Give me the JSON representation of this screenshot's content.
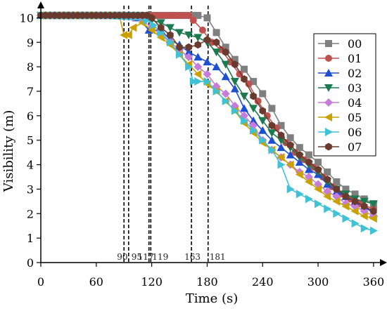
{
  "chart_data": {
    "type": "line",
    "title": "",
    "xlabel": "Time (s)",
    "ylabel": "Visibility (m)",
    "xlim": [
      0,
      370
    ],
    "ylim": [
      0,
      10.5
    ],
    "xticks": [
      0,
      60,
      120,
      180,
      240,
      300,
      360
    ],
    "yticks": [
      0,
      1,
      2,
      3,
      4,
      5,
      6,
      7,
      8,
      9,
      10
    ],
    "grid": false,
    "legend_position": "top-right",
    "vertical_lines": [
      {
        "x": 90,
        "label": "90"
      },
      {
        "x": 95,
        "label": "95"
      },
      {
        "x": 117,
        "label": "117"
      },
      {
        "x": 119,
        "label": "119"
      },
      {
        "x": 163,
        "label": "163"
      },
      {
        "x": 181,
        "label": "181"
      }
    ],
    "series": [
      {
        "name": "00",
        "color": "#7f7f7f",
        "marker": "square",
        "x": [
          0,
          170,
          180,
          190,
          200,
          210,
          220,
          230,
          240,
          250,
          260,
          270,
          280,
          290,
          300,
          310,
          320,
          330,
          340,
          350,
          360
        ],
        "y": [
          10.1,
          10.1,
          10.0,
          9.4,
          8.8,
          8.3,
          7.9,
          7.4,
          6.9,
          6.3,
          5.6,
          5.1,
          4.7,
          4.4,
          4.1,
          3.7,
          3.3,
          3.0,
          2.8,
          2.6,
          2.4
        ]
      },
      {
        "name": "01",
        "color": "#c0504d",
        "marker": "circle",
        "x": [
          0,
          160,
          165,
          175,
          185,
          195,
          205,
          215,
          225,
          235,
          245,
          255,
          265,
          275,
          285,
          295,
          305,
          315,
          325,
          335,
          345,
          360
        ],
        "y": [
          10.1,
          10.1,
          9.9,
          9.5,
          9.0,
          8.7,
          8.2,
          7.7,
          7.3,
          6.6,
          6.0,
          5.5,
          4.9,
          4.5,
          4.2,
          3.9,
          3.5,
          3.1,
          2.8,
          2.6,
          2.4,
          2.2
        ]
      },
      {
        "name": "02",
        "color": "#1f4fd1",
        "marker": "triangle-up",
        "x": [
          0,
          105,
          117,
          130,
          140,
          150,
          160,
          170,
          180,
          190,
          200,
          210,
          220,
          230,
          240,
          250,
          260,
          270,
          280,
          290,
          300,
          310,
          320,
          330,
          340,
          350,
          360
        ],
        "y": [
          10.1,
          10.0,
          9.5,
          9.5,
          9.1,
          8.9,
          8.6,
          8.4,
          8.2,
          8.0,
          7.6,
          7.1,
          6.3,
          5.8,
          5.4,
          5.0,
          4.7,
          4.4,
          4.1,
          3.8,
          3.6,
          3.2,
          2.9,
          2.7,
          2.5,
          2.3,
          2.0
        ]
      },
      {
        "name": "03",
        "color": "#1b7a4f",
        "marker": "triangle-down",
        "x": [
          0,
          110,
          120,
          130,
          140,
          150,
          160,
          170,
          180,
          190,
          200,
          210,
          220,
          230,
          240,
          250,
          260,
          270,
          280,
          290,
          300,
          310,
          320,
          330,
          340,
          350,
          360
        ],
        "y": [
          10.1,
          10.0,
          9.9,
          9.8,
          9.6,
          9.4,
          9.3,
          9.2,
          9.0,
          8.6,
          8.1,
          7.4,
          6.8,
          6.3,
          5.8,
          5.3,
          5.0,
          4.7,
          4.3,
          4.0,
          3.7,
          3.3,
          3.0,
          2.8,
          2.6,
          2.5,
          2.4
        ]
      },
      {
        "name": "04",
        "color": "#c67dd9",
        "marker": "diamond",
        "x": [
          0,
          100,
          110,
          120,
          130,
          140,
          150,
          160,
          170,
          180,
          190,
          200,
          210,
          220,
          230,
          240,
          250,
          260,
          270,
          280,
          290,
          300,
          310,
          320,
          330,
          340,
          350,
          360
        ],
        "y": [
          10.1,
          10.0,
          9.9,
          9.6,
          9.3,
          9.0,
          8.7,
          8.4,
          8.0,
          7.7,
          7.2,
          6.9,
          6.4,
          6.0,
          5.6,
          5.0,
          4.6,
          4.3,
          4.0,
          3.7,
          3.5,
          3.2,
          2.9,
          2.7,
          2.4,
          2.3,
          2.1,
          1.9
        ]
      },
      {
        "name": "05",
        "color": "#c9a100",
        "marker": "triangle-left",
        "x": [
          0,
          85,
          90,
          95,
          100,
          110,
          120,
          130,
          140,
          150,
          160,
          170,
          180,
          190,
          200,
          210,
          220,
          230,
          240,
          250,
          260,
          270,
          280,
          290,
          300,
          310,
          320,
          330,
          340,
          350,
          360
        ],
        "y": [
          10.1,
          10.1,
          9.3,
          9.3,
          9.6,
          9.8,
          9.5,
          9.2,
          8.9,
          8.5,
          8.1,
          7.7,
          7.3,
          7.0,
          6.6,
          6.2,
          5.7,
          5.3,
          4.9,
          4.6,
          4.3,
          4.0,
          3.6,
          3.3,
          3.0,
          2.7,
          2.5,
          2.3,
          2.1,
          1.9,
          1.8
        ]
      },
      {
        "name": "06",
        "color": "#3fc1d6",
        "marker": "triangle-right",
        "x": [
          0,
          115,
          122,
          130,
          140,
          150,
          160,
          165,
          170,
          180,
          190,
          200,
          210,
          220,
          230,
          240,
          250,
          260,
          270,
          280,
          290,
          300,
          310,
          320,
          330,
          340,
          350,
          360
        ],
        "y": [
          10.1,
          9.9,
          9.7,
          9.4,
          9.0,
          8.5,
          8.0,
          7.4,
          7.4,
          7.4,
          7.0,
          6.6,
          6.2,
          5.8,
          5.4,
          5.0,
          4.6,
          4.0,
          3.0,
          2.8,
          2.6,
          2.4,
          2.2,
          2.0,
          1.8,
          1.6,
          1.4,
          1.3
        ]
      },
      {
        "name": "07",
        "color": "#6b3a2e",
        "marker": "hexagon",
        "x": [
          0,
          120,
          130,
          140,
          150,
          160,
          170,
          180,
          190,
          200,
          210,
          220,
          230,
          240,
          250,
          260,
          270,
          280,
          290,
          300,
          310,
          320,
          330,
          340,
          350,
          360
        ],
        "y": [
          10.1,
          10.0,
          9.6,
          9.3,
          8.8,
          8.8,
          8.9,
          9.1,
          9.0,
          8.6,
          8.1,
          7.5,
          6.8,
          6.2,
          5.6,
          5.2,
          4.8,
          4.4,
          4.1,
          3.8,
          3.4,
          3.0,
          2.7,
          2.5,
          2.3,
          2.1
        ]
      }
    ]
  }
}
